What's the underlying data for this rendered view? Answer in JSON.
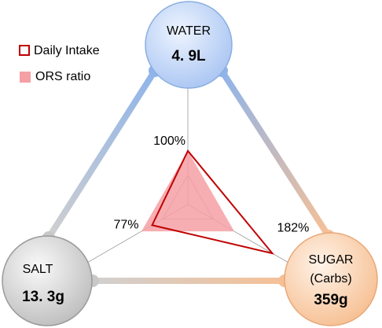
{
  "chart_data": {
    "type": "radar",
    "categories": [
      "WATER",
      "SUGAR",
      "SALT"
    ],
    "sugar_note": "(Carbs)",
    "amounts": [
      "4. 9L",
      "359g",
      "13. 3g"
    ],
    "rlim": [
      0,
      220
    ],
    "series": [
      {
        "name": "Daily Intake",
        "color": "#c00000",
        "values": [
          100,
          182,
          77
        ],
        "value_labels": [
          "100%",
          "182%",
          "77%"
        ]
      },
      {
        "name": "ORS ratio",
        "color": "#f4a0a4",
        "values": [
          100,
          100,
          100
        ]
      }
    ]
  }
}
